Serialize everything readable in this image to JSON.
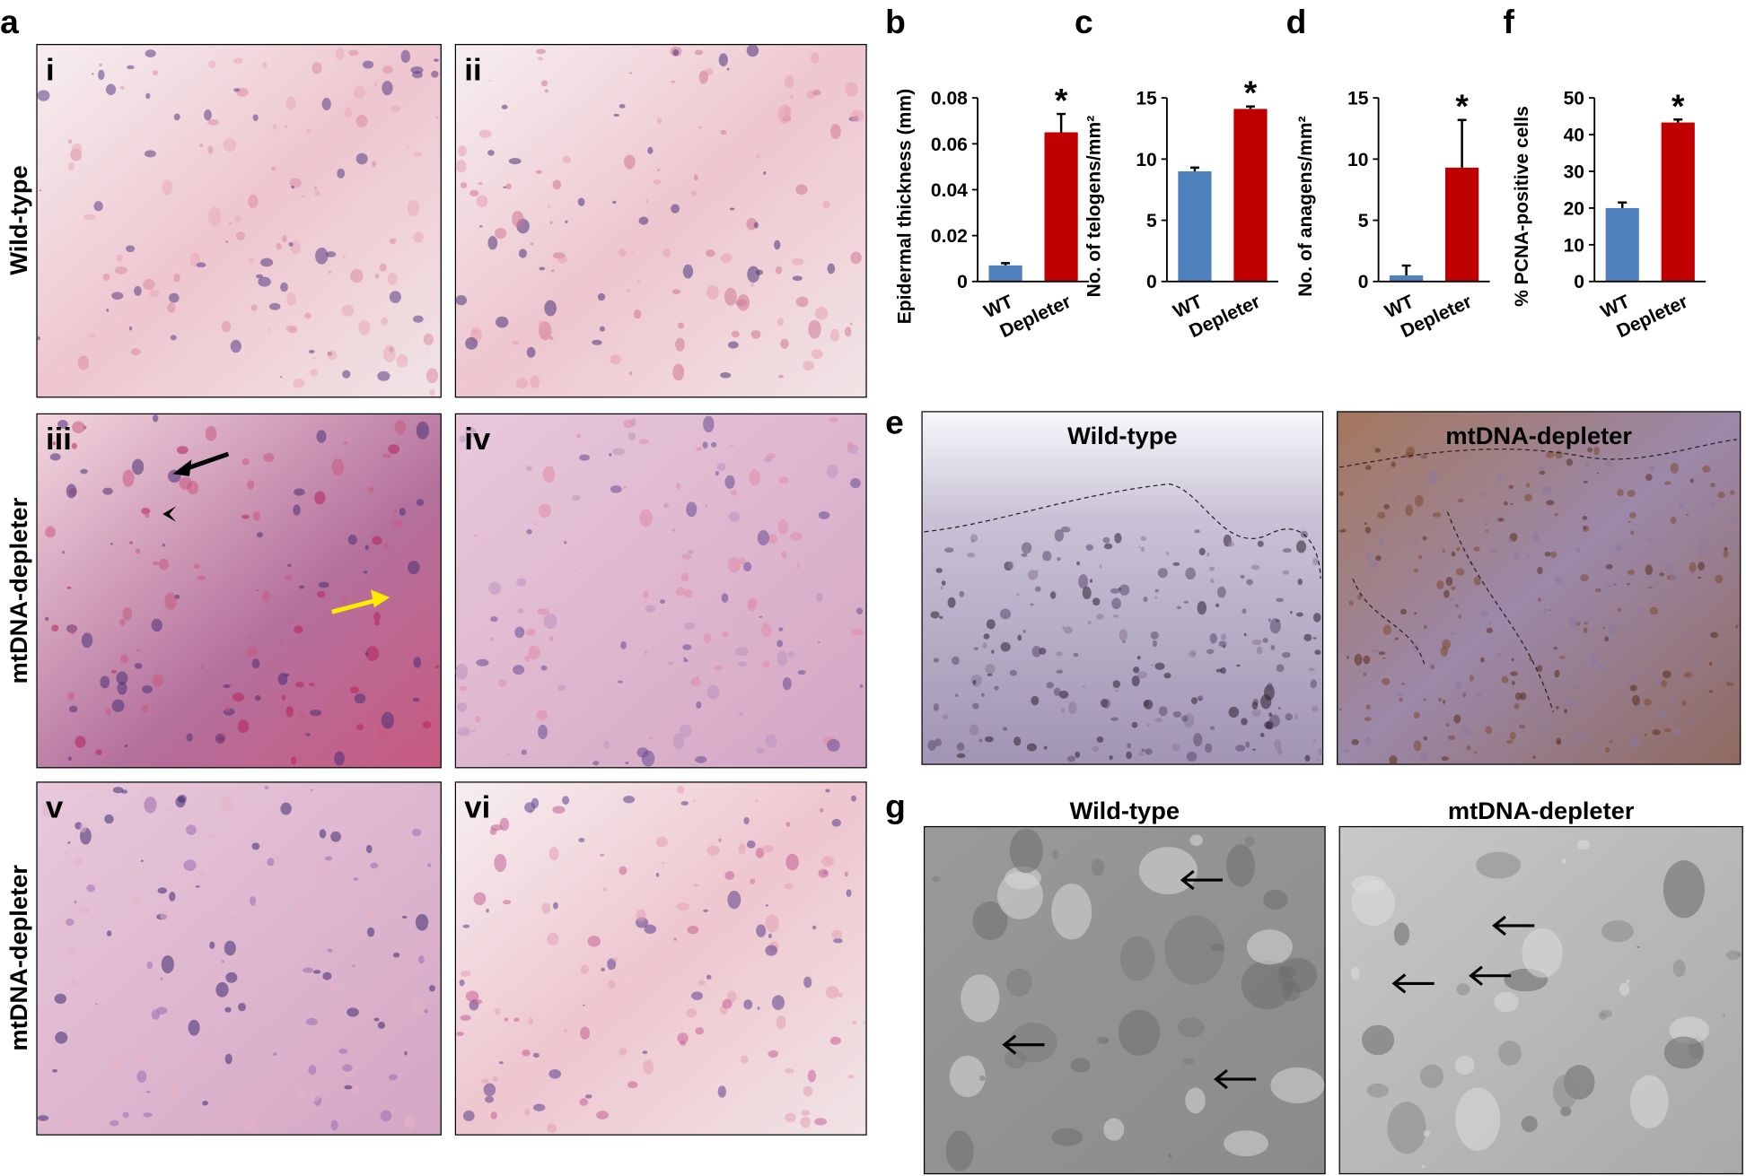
{
  "histology": {
    "label": "a",
    "rows": [
      "Wild-type",
      "mtDNA-depleter",
      "mtDNA-depleter"
    ],
    "images": [
      "i",
      "ii",
      "iii",
      "iv",
      "v",
      "vi"
    ]
  },
  "ihc": {
    "label": "e",
    "captions": [
      "Wild-type",
      "mtDNA-depleter"
    ]
  },
  "em": {
    "label": "g",
    "captions": [
      "Wild-type",
      "mtDNA-depleter"
    ]
  },
  "chart_data": [
    {
      "type": "bar",
      "panel": "b",
      "y_label": "Epidermal thickness (mm)",
      "categories": [
        "WT",
        "Depleter"
      ],
      "values": [
        0.007,
        0.065
      ],
      "errors": [
        0.001,
        0.008
      ],
      "colors": [
        "#4f81bd",
        "#c00000"
      ],
      "annotation": "*",
      "ylim": [
        0,
        0.08
      ],
      "yticks": [
        0,
        0.02,
        0.04,
        0.06,
        0.08
      ]
    },
    {
      "type": "bar",
      "panel": "c",
      "y_label": "No. of telogens/mm²",
      "categories": [
        "WT",
        "Depleter"
      ],
      "values": [
        9,
        14.1
      ],
      "errors": [
        0.3,
        0.2
      ],
      "colors": [
        "#4f81bd",
        "#c00000"
      ],
      "annotation": "*",
      "ylim": [
        0,
        15
      ],
      "yticks": [
        0,
        5,
        10,
        15
      ]
    },
    {
      "type": "bar",
      "panel": "d",
      "y_label": "No. of anagens/mm²",
      "categories": [
        "WT",
        "Depleter"
      ],
      "values": [
        0.5,
        9.3
      ],
      "errors": [
        0.8,
        3.9
      ],
      "colors": [
        "#4f81bd",
        "#c00000"
      ],
      "annotation": "*",
      "ylim": [
        0,
        15
      ],
      "yticks": [
        0,
        5,
        10,
        15
      ]
    },
    {
      "type": "bar",
      "panel": "f",
      "y_label": "% PCNA-positive cells",
      "categories": [
        "WT",
        "Depleter"
      ],
      "values": [
        20,
        43.3
      ],
      "errors": [
        1.5,
        0.8
      ],
      "colors": [
        "#4f81bd",
        "#c00000"
      ],
      "annotation": "*",
      "ylim": [
        0,
        50
      ],
      "yticks": [
        0,
        10,
        20,
        30,
        40,
        50
      ]
    }
  ]
}
